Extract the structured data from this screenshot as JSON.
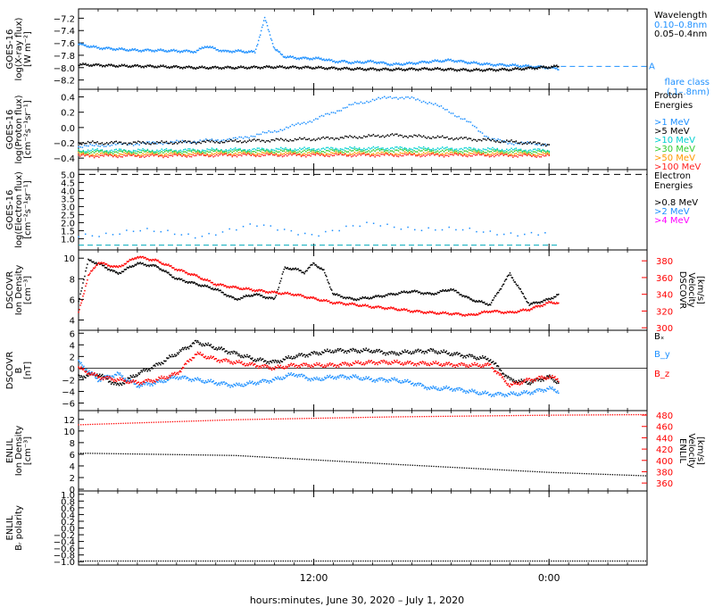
{
  "chart_data": {
    "type": "line",
    "xlabel": "hours:minutes, June 30, 2020 – July  1, 2020",
    "x_range_hours": [
      0,
      29
    ],
    "x_ticks": [
      {
        "hour": 12,
        "label": "12:00"
      },
      {
        "hour": 24,
        "label": "0:00"
      }
    ],
    "panels": [
      {
        "id": "xray",
        "ylabel": [
          "GOES-16",
          "log(X-ray flux)",
          "[W m⁻²]"
        ],
        "ylim": [
          -8.35,
          -7.05
        ],
        "yticks": [
          -8.2,
          -8.0,
          -7.8,
          -7.6,
          -7.4,
          -7.2
        ],
        "legend_title": [
          "Wavelength"
        ],
        "series": [
          {
            "name": "0.10–0.8nm",
            "color": "#1e90ff",
            "x": [
              0,
              1,
              2,
              3,
              4,
              5,
              6,
              6.5,
              7,
              7.5,
              8,
              8.5,
              9,
              9.5,
              10,
              10.5,
              11,
              11.5,
              12,
              12.5,
              13,
              13.5,
              14,
              15,
              16,
              17,
              18,
              19,
              20,
              21,
              22,
              23,
              24,
              24.5
            ],
            "y": [
              -7.62,
              -7.68,
              -7.7,
              -7.72,
              -7.72,
              -7.73,
              -7.74,
              -7.65,
              -7.7,
              -7.74,
              -7.73,
              -7.74,
              -7.75,
              -7.2,
              -7.7,
              -7.82,
              -7.84,
              -7.85,
              -7.85,
              -7.86,
              -7.9,
              -7.9,
              -7.92,
              -7.9,
              -7.95,
              -7.93,
              -7.9,
              -7.88,
              -7.92,
              -7.95,
              -7.96,
              -7.98,
              -8.0,
              -8.02
            ]
          },
          {
            "name": "0.05–0.4nm",
            "color": "#000000",
            "x": [
              0,
              2,
              4,
              6,
              8,
              10,
              12,
              14,
              16,
              18,
              20,
              22,
              24,
              24.5
            ],
            "y": [
              -7.95,
              -7.97,
              -7.98,
              -8.0,
              -8.0,
              -7.99,
              -8.0,
              -8.02,
              -8.03,
              -8.02,
              -8.04,
              -8.03,
              -7.99,
              -7.98
            ]
          }
        ],
        "annotation": {
          "text": [
            "flare class",
            "(.1–.8nm)"
          ],
          "level": -7.98,
          "letter": "A",
          "color": "#1e90ff"
        }
      },
      {
        "id": "proton",
        "ylabel": [
          "GOES-16",
          "log(Proton flux)",
          "[cm⁻²s⁻¹sr⁻¹]"
        ],
        "ylim": [
          -0.55,
          0.5
        ],
        "yticks": [
          -0.4,
          -0.2,
          0.0,
          0.2,
          0.4
        ],
        "legend_title": [
          "Proton",
          "Energies"
        ],
        "series": [
          {
            "name": ">1 MeV",
            "color": "#1e90ff",
            "x": [
              0,
              2,
              4,
              6,
              8,
              10,
              12,
              13,
              14,
              15,
              16,
              17,
              18,
              19,
              20,
              21,
              22,
              24
            ],
            "y": [
              -0.25,
              -0.22,
              -0.2,
              -0.18,
              -0.15,
              -0.05,
              0.1,
              0.2,
              0.3,
              0.36,
              0.4,
              0.38,
              0.32,
              0.2,
              0.05,
              -0.15,
              -0.2,
              -0.22
            ]
          },
          {
            "name": ">5 MeV",
            "color": "#000000",
            "x": [
              0,
              4,
              8,
              12,
              16,
              20,
              24
            ],
            "y": [
              -0.2,
              -0.2,
              -0.18,
              -0.15,
              -0.1,
              -0.15,
              -0.22
            ]
          },
          {
            "name": ">10 MeV",
            "color": "#00d0d0",
            "x": [
              0,
              4,
              8,
              12,
              16,
              20,
              24
            ],
            "y": [
              -0.3,
              -0.3,
              -0.29,
              -0.28,
              -0.27,
              -0.28,
              -0.3
            ]
          },
          {
            "name": ">30 MeV",
            "color": "#33cc33",
            "x": [
              0,
              4,
              8,
              12,
              16,
              20,
              24
            ],
            "y": [
              -0.32,
              -0.32,
              -0.31,
              -0.31,
              -0.3,
              -0.31,
              -0.32
            ]
          },
          {
            "name": ">50 MeV",
            "color": "#ff9900",
            "x": [
              0,
              4,
              8,
              12,
              16,
              20,
              24
            ],
            "y": [
              -0.35,
              -0.35,
              -0.34,
              -0.34,
              -0.34,
              -0.34,
              -0.35
            ]
          },
          {
            "name": ">100 MeV",
            "color": "#ff2222",
            "x": [
              0,
              4,
              8,
              12,
              16,
              20,
              24
            ],
            "y": [
              -0.37,
              -0.37,
              -0.36,
              -0.36,
              -0.36,
              -0.36,
              -0.37
            ]
          }
        ]
      },
      {
        "id": "electron",
        "ylabel": [
          "GOES-16",
          "log(Electron flux)",
          "[cm⁻²s⁻¹sr⁻¹]"
        ],
        "ylim": [
          0.3,
          5.3
        ],
        "yticks": [
          1,
          1.5,
          2,
          2.5,
          3,
          3.5,
          4,
          4.5,
          5
        ],
        "legend_title": [
          "Electron",
          "Energies"
        ],
        "series": [
          {
            "name": ">0.8 MeV",
            "color": "#000000",
            "x": [
              0,
              29
            ],
            "y": [
              5.0,
              5.0
            ]
          },
          {
            "name": ">2 MeV",
            "color": "#1e90ff",
            "x": [
              0,
              3,
              6,
              9,
              12,
              15,
              18,
              21,
              24
            ],
            "y": [
              1.2,
              1.5,
              1.2,
              1.8,
              1.3,
              1.9,
              1.6,
              1.4,
              1.3
            ]
          },
          {
            "name": ">4 MeV",
            "color": "#ff00ff",
            "x": [],
            "y": []
          }
        ],
        "reference_level": 0.6
      },
      {
        "id": "dscovr_density",
        "ylabel": [
          "DSCOVR",
          "Ion Density",
          "[cm⁻³]"
        ],
        "ylim": [
          3.0,
          10.8
        ],
        "yticks": [
          4,
          6,
          8,
          10
        ],
        "y2label": [
          "DSCOVR",
          "Velocity",
          "[km/s]"
        ],
        "y2lim": [
          297,
          393
        ],
        "y2ticks": [
          300,
          320,
          340,
          360,
          380
        ],
        "series": [
          {
            "name": "Ion Density",
            "color": "#000000",
            "x": [
              0,
              0.5,
              1,
              1.5,
              2,
              3,
              4,
              5,
              6,
              7,
              8,
              9,
              10,
              10.5,
              11,
              11.5,
              12,
              12.5,
              13,
              14,
              15,
              16,
              17,
              18,
              19,
              20,
              21,
              22,
              23,
              24,
              24.5
            ],
            "y": [
              5.8,
              9.8,
              9.5,
              9.0,
              8.5,
              9.5,
              9.2,
              8.0,
              7.5,
              7.0,
              6.0,
              6.5,
              6.0,
              9.0,
              9.0,
              8.6,
              9.5,
              8.8,
              6.5,
              6.0,
              6.2,
              6.5,
              6.8,
              6.5,
              7.0,
              6.0,
              5.5,
              8.5,
              5.5,
              6.0,
              6.5
            ]
          },
          {
            "name": "Velocity",
            "axis": "right",
            "color": "#ff0000",
            "x": [
              0,
              0.5,
              1,
              2,
              3,
              4,
              5,
              6,
              7,
              8,
              9,
              10,
              11,
              12,
              13,
              14,
              15,
              16,
              17,
              18,
              19,
              20,
              21,
              22,
              23,
              24,
              24.5
            ],
            "y": [
              318,
              362,
              378,
              372,
              385,
              380,
              370,
              362,
              352,
              348,
              345,
              342,
              340,
              335,
              330,
              328,
              325,
              323,
              320,
              318,
              317,
              315,
              320,
              318,
              322,
              330,
              330
            ]
          }
        ]
      },
      {
        "id": "dscovr_b",
        "ylabel": [
          "DSCOVR",
          "B",
          "[nT]"
        ],
        "ylim": [
          -7.3,
          6.5
        ],
        "yticks": [
          -6,
          -4,
          -2,
          0,
          2,
          4,
          6
        ],
        "series": [
          {
            "name": "Bₓ",
            "color": "#000000",
            "x": [
              0,
              1,
              2,
              3,
              4,
              5,
              6,
              7,
              8,
              9,
              10,
              11,
              12,
              13,
              14,
              15,
              16,
              17,
              18,
              19,
              20,
              21,
              22,
              23,
              24,
              24.5
            ],
            "y": [
              -1.5,
              -1.0,
              -3.0,
              -1.0,
              0.5,
              2.5,
              4.5,
              3.5,
              2.5,
              1.5,
              1.0,
              2.0,
              2.5,
              3.0,
              3.0,
              3.0,
              2.5,
              2.8,
              3.0,
              2.5,
              2.0,
              1.5,
              -2.0,
              -2.5,
              -1.5,
              -2.5
            ]
          },
          {
            "name": "B_y",
            "color": "#1e90ff",
            "x": [
              0,
              1,
              2,
              3,
              4,
              5,
              6,
              7,
              8,
              9,
              10,
              11,
              12,
              13,
              14,
              15,
              16,
              17,
              18,
              19,
              20,
              21,
              22,
              23,
              24,
              24.5
            ],
            "y": [
              1.0,
              -2.0,
              -1.0,
              -3.0,
              -2.5,
              -1.5,
              -2.0,
              -2.5,
              -3.0,
              -2.5,
              -2.0,
              -1.0,
              -2.0,
              -1.5,
              -1.5,
              -2.0,
              -2.0,
              -2.5,
              -3.5,
              -3.5,
              -4.0,
              -4.5,
              -4.5,
              -4.2,
              -3.5,
              -4.0
            ]
          },
          {
            "name": "B_z",
            "color": "#ff0000",
            "x": [
              0,
              1,
              2,
              3,
              4,
              5,
              6,
              7,
              8,
              9,
              10,
              11,
              12,
              13,
              14,
              15,
              16,
              17,
              18,
              19,
              20,
              21,
              22,
              23,
              24,
              24.5
            ],
            "y": [
              0.0,
              -1.5,
              -2.0,
              -2.5,
              -2.0,
              -1.0,
              2.5,
              1.5,
              1.0,
              0.5,
              0.0,
              0.5,
              0.5,
              0.5,
              0.8,
              1.0,
              1.0,
              0.8,
              0.8,
              0.6,
              0.5,
              0.5,
              -3.0,
              -2.0,
              -1.5,
              -2.0
            ]
          }
        ]
      },
      {
        "id": "enlil_density",
        "ylabel": [
          "ENLIL",
          "Ion Density",
          "[cm⁻³]"
        ],
        "ylim": [
          -0.3,
          13.5
        ],
        "yticks": [
          0,
          2,
          4,
          6,
          8,
          10,
          12
        ],
        "y2label": [
          "ENLIL",
          "Velocity",
          "[km/s]"
        ],
        "y2lim": [
          346,
          488
        ],
        "y2ticks": [
          360,
          380,
          400,
          420,
          440,
          460,
          480
        ],
        "series": [
          {
            "name": "Ion Density",
            "color": "#000000",
            "x": [
              0,
              8,
              16,
              24,
              29
            ],
            "y": [
              6.2,
              5.8,
              4.3,
              2.9,
              2.3
            ]
          },
          {
            "name": "Velocity",
            "axis": "right",
            "color": "#ff0000",
            "x": [
              0,
              8,
              16,
              24,
              29
            ],
            "y": [
              463,
              472,
              477,
              480,
              481
            ]
          }
        ]
      },
      {
        "id": "enlil_polarity",
        "ylabel": [
          "ENLIL",
          "Bᵣ polarity"
        ],
        "ylim": [
          -1.1,
          1.1
        ],
        "yticks": [
          -1.0,
          -0.8,
          -0.6,
          -0.4,
          -0.2,
          0.0,
          0.2,
          0.4,
          0.6,
          0.8,
          1.0
        ],
        "series": [
          {
            "name": "Bᵣ polarity",
            "color": "#000000",
            "x": [
              0,
              29
            ],
            "y": [
              -0.98,
              -0.98
            ]
          }
        ]
      }
    ]
  }
}
